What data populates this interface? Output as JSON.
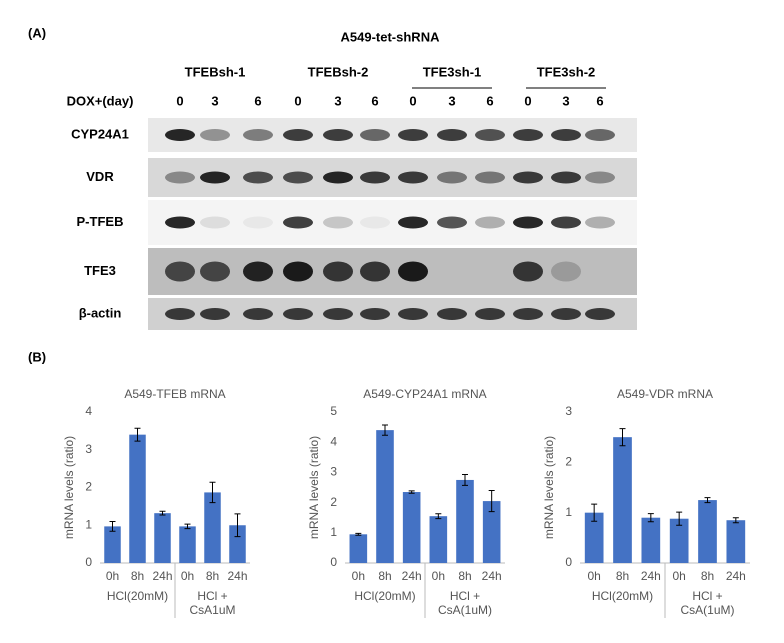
{
  "panel_a": {
    "label": "(A)",
    "title": "A549-tet-shRNA",
    "groups": [
      "TFEBsh-1",
      "TFEBsh-2",
      "TFE3sh-1",
      "TFE3sh-2"
    ],
    "row_label": "DOX+(day)",
    "days": [
      "0",
      "3",
      "6"
    ],
    "blots": [
      "CYP24A1",
      "VDR",
      "P-TFEB",
      "TFE3",
      "β-actin"
    ]
  },
  "panel_b_label": "(B)",
  "chart_data": [
    {
      "type": "bar",
      "title": "A549-TFEB mRNA",
      "y_label": "mRNA levels (ratio)",
      "color": "#4472c4",
      "categories": [
        "0h",
        "8h",
        "24h",
        "0h",
        "8h",
        "24h"
      ],
      "group_labels": [
        [
          "HCl(20mM)"
        ],
        [
          "HCl +",
          "CsA1uM"
        ]
      ],
      "values": [
        0.97,
        3.4,
        1.32,
        0.97,
        1.87,
        1.0
      ],
      "errors": [
        0.13,
        0.17,
        0.05,
        0.06,
        0.27,
        0.3
      ],
      "ylim": [
        0,
        4
      ],
      "yticks": [
        0,
        1,
        2,
        3,
        4
      ]
    },
    {
      "type": "bar",
      "title": "A549-CYP24A1 mRNA",
      "y_label": "mRNA levels (ratio)",
      "color": "#4472c4",
      "categories": [
        "0h",
        "8h",
        "24h",
        "0h",
        "8h",
        "24h"
      ],
      "group_labels": [
        [
          "HCl(20mM)"
        ],
        [
          "HCl +",
          "CsA(1uM)"
        ]
      ],
      "values": [
        0.95,
        4.4,
        2.35,
        1.55,
        2.75,
        2.05
      ],
      "errors": [
        0.03,
        0.17,
        0.04,
        0.08,
        0.18,
        0.35
      ],
      "ylim": [
        0,
        5
      ],
      "yticks": [
        0,
        1,
        2,
        3,
        4,
        5
      ]
    },
    {
      "type": "bar",
      "title": "A549-VDR mRNA",
      "y_label": "mRNA levels (ratio)",
      "color": "#4472c4",
      "categories": [
        "0h",
        "8h",
        "24h",
        "0h",
        "8h",
        "24h"
      ],
      "group_labels": [
        [
          "HCl(20mM)"
        ],
        [
          "HCl +",
          "CsA(1uM)"
        ]
      ],
      "values": [
        1.0,
        2.5,
        0.9,
        0.88,
        1.25,
        0.85
      ],
      "errors": [
        0.17,
        0.17,
        0.08,
        0.13,
        0.05,
        0.05
      ],
      "ylim": [
        0,
        3
      ],
      "yticks": [
        0,
        1,
        2,
        3
      ]
    }
  ]
}
